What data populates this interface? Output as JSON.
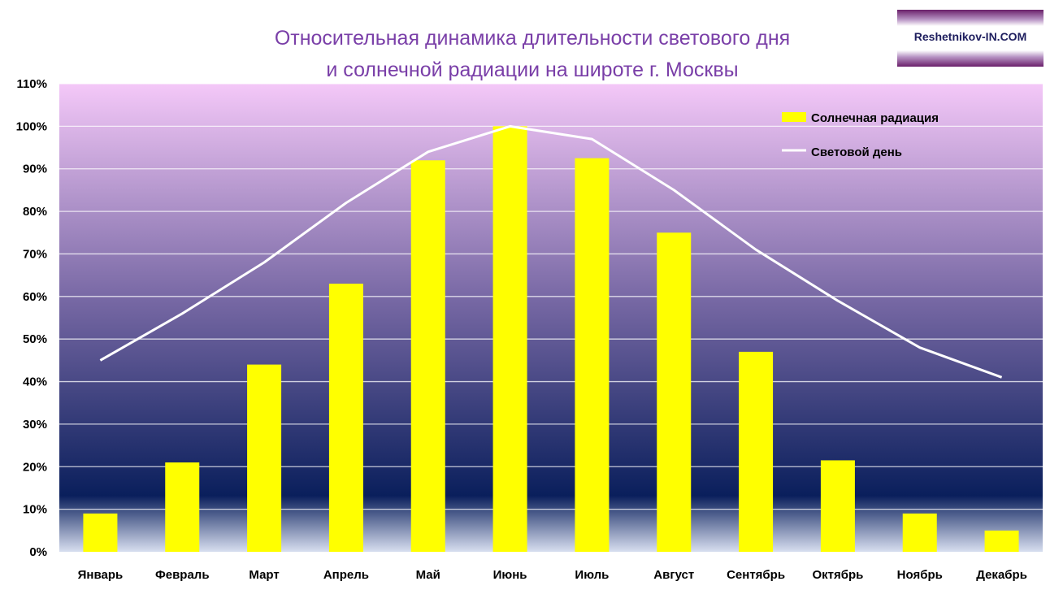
{
  "header": {
    "title_line1": "Относительная динамика длительности светового дня",
    "title_line2": "и солнечной радиации на широте г. Москвы",
    "brand": "Reshetnikov-IN.COM"
  },
  "colors": {
    "bar": "#ffff00",
    "line": "#ffffff",
    "title": "#7a3fa8",
    "plot_top": "#f4c8f8",
    "plot_mid": "#7a6aa6",
    "plot_bottom": "#0a1f5c"
  },
  "chart_data": {
    "type": "bar",
    "title": "Относительная динамика длительности светового дня и солнечной радиации на широте г. Москвы",
    "xlabel": "",
    "ylabel": "",
    "ylim": [
      0,
      110
    ],
    "y_unit": "%",
    "yticks": [
      "0%",
      "10%",
      "20%",
      "30%",
      "40%",
      "50%",
      "60%",
      "70%",
      "80%",
      "90%",
      "100%",
      "110%"
    ],
    "grid": true,
    "legend_position": "top-right",
    "categories": [
      "Январь",
      "Февраль",
      "Март",
      "Апрель",
      "Май",
      "Июнь",
      "Июль",
      "Август",
      "Сентябрь",
      "Октябрь",
      "Ноябрь",
      "Декабрь"
    ],
    "series": [
      {
        "name": "Солнечная радиация",
        "type": "bar",
        "values": [
          9,
          21,
          44,
          63,
          92,
          100,
          92.5,
          75,
          47,
          21.5,
          9,
          5
        ]
      },
      {
        "name": "Световой день",
        "type": "line",
        "values": [
          45,
          56,
          68,
          82,
          94,
          100,
          97,
          85,
          71,
          59,
          48,
          41
        ]
      }
    ]
  }
}
